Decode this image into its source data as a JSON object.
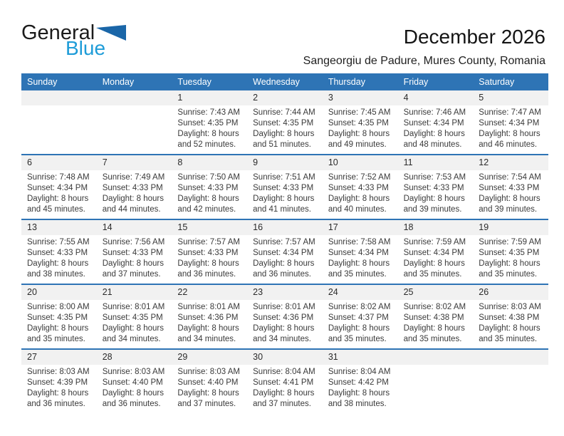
{
  "logo": {
    "word_general": "General",
    "word_blue": "Blue"
  },
  "header": {
    "title": "December 2026",
    "subtitle": "Sangeorgiu de Padure, Mures County, Romania"
  },
  "colors": {
    "accent_blue": "#2E74B5",
    "band_gray": "#F1F1F1",
    "logo_blue": "#1E9CD8",
    "logo_triangle_blue": "#1A66A8",
    "header_text": "#FFFFFF"
  },
  "calendar": {
    "weekdays": [
      "Sunday",
      "Monday",
      "Tuesday",
      "Wednesday",
      "Thursday",
      "Friday",
      "Saturday"
    ],
    "weeks": [
      [
        {
          "day": "",
          "sunrise": "",
          "sunset": "",
          "daylight": ""
        },
        {
          "day": "",
          "sunrise": "",
          "sunset": "",
          "daylight": ""
        },
        {
          "day": "1",
          "sunrise": "Sunrise: 7:43 AM",
          "sunset": "Sunset: 4:35 PM",
          "daylight": "Daylight: 8 hours and 52 minutes."
        },
        {
          "day": "2",
          "sunrise": "Sunrise: 7:44 AM",
          "sunset": "Sunset: 4:35 PM",
          "daylight": "Daylight: 8 hours and 51 minutes."
        },
        {
          "day": "3",
          "sunrise": "Sunrise: 7:45 AM",
          "sunset": "Sunset: 4:35 PM",
          "daylight": "Daylight: 8 hours and 49 minutes."
        },
        {
          "day": "4",
          "sunrise": "Sunrise: 7:46 AM",
          "sunset": "Sunset: 4:34 PM",
          "daylight": "Daylight: 8 hours and 48 minutes."
        },
        {
          "day": "5",
          "sunrise": "Sunrise: 7:47 AM",
          "sunset": "Sunset: 4:34 PM",
          "daylight": "Daylight: 8 hours and 46 minutes."
        }
      ],
      [
        {
          "day": "6",
          "sunrise": "Sunrise: 7:48 AM",
          "sunset": "Sunset: 4:34 PM",
          "daylight": "Daylight: 8 hours and 45 minutes."
        },
        {
          "day": "7",
          "sunrise": "Sunrise: 7:49 AM",
          "sunset": "Sunset: 4:33 PM",
          "daylight": "Daylight: 8 hours and 44 minutes."
        },
        {
          "day": "8",
          "sunrise": "Sunrise: 7:50 AM",
          "sunset": "Sunset: 4:33 PM",
          "daylight": "Daylight: 8 hours and 42 minutes."
        },
        {
          "day": "9",
          "sunrise": "Sunrise: 7:51 AM",
          "sunset": "Sunset: 4:33 PM",
          "daylight": "Daylight: 8 hours and 41 minutes."
        },
        {
          "day": "10",
          "sunrise": "Sunrise: 7:52 AM",
          "sunset": "Sunset: 4:33 PM",
          "daylight": "Daylight: 8 hours and 40 minutes."
        },
        {
          "day": "11",
          "sunrise": "Sunrise: 7:53 AM",
          "sunset": "Sunset: 4:33 PM",
          "daylight": "Daylight: 8 hours and 39 minutes."
        },
        {
          "day": "12",
          "sunrise": "Sunrise: 7:54 AM",
          "sunset": "Sunset: 4:33 PM",
          "daylight": "Daylight: 8 hours and 39 minutes."
        }
      ],
      [
        {
          "day": "13",
          "sunrise": "Sunrise: 7:55 AM",
          "sunset": "Sunset: 4:33 PM",
          "daylight": "Daylight: 8 hours and 38 minutes."
        },
        {
          "day": "14",
          "sunrise": "Sunrise: 7:56 AM",
          "sunset": "Sunset: 4:33 PM",
          "daylight": "Daylight: 8 hours and 37 minutes."
        },
        {
          "day": "15",
          "sunrise": "Sunrise: 7:57 AM",
          "sunset": "Sunset: 4:33 PM",
          "daylight": "Daylight: 8 hours and 36 minutes."
        },
        {
          "day": "16",
          "sunrise": "Sunrise: 7:57 AM",
          "sunset": "Sunset: 4:34 PM",
          "daylight": "Daylight: 8 hours and 36 minutes."
        },
        {
          "day": "17",
          "sunrise": "Sunrise: 7:58 AM",
          "sunset": "Sunset: 4:34 PM",
          "daylight": "Daylight: 8 hours and 35 minutes."
        },
        {
          "day": "18",
          "sunrise": "Sunrise: 7:59 AM",
          "sunset": "Sunset: 4:34 PM",
          "daylight": "Daylight: 8 hours and 35 minutes."
        },
        {
          "day": "19",
          "sunrise": "Sunrise: 7:59 AM",
          "sunset": "Sunset: 4:35 PM",
          "daylight": "Daylight: 8 hours and 35 minutes."
        }
      ],
      [
        {
          "day": "20",
          "sunrise": "Sunrise: 8:00 AM",
          "sunset": "Sunset: 4:35 PM",
          "daylight": "Daylight: 8 hours and 35 minutes."
        },
        {
          "day": "21",
          "sunrise": "Sunrise: 8:01 AM",
          "sunset": "Sunset: 4:35 PM",
          "daylight": "Daylight: 8 hours and 34 minutes."
        },
        {
          "day": "22",
          "sunrise": "Sunrise: 8:01 AM",
          "sunset": "Sunset: 4:36 PM",
          "daylight": "Daylight: 8 hours and 34 minutes."
        },
        {
          "day": "23",
          "sunrise": "Sunrise: 8:01 AM",
          "sunset": "Sunset: 4:36 PM",
          "daylight": "Daylight: 8 hours and 34 minutes."
        },
        {
          "day": "24",
          "sunrise": "Sunrise: 8:02 AM",
          "sunset": "Sunset: 4:37 PM",
          "daylight": "Daylight: 8 hours and 35 minutes."
        },
        {
          "day": "25",
          "sunrise": "Sunrise: 8:02 AM",
          "sunset": "Sunset: 4:38 PM",
          "daylight": "Daylight: 8 hours and 35 minutes."
        },
        {
          "day": "26",
          "sunrise": "Sunrise: 8:03 AM",
          "sunset": "Sunset: 4:38 PM",
          "daylight": "Daylight: 8 hours and 35 minutes."
        }
      ],
      [
        {
          "day": "27",
          "sunrise": "Sunrise: 8:03 AM",
          "sunset": "Sunset: 4:39 PM",
          "daylight": "Daylight: 8 hours and 36 minutes."
        },
        {
          "day": "28",
          "sunrise": "Sunrise: 8:03 AM",
          "sunset": "Sunset: 4:40 PM",
          "daylight": "Daylight: 8 hours and 36 minutes."
        },
        {
          "day": "29",
          "sunrise": "Sunrise: 8:03 AM",
          "sunset": "Sunset: 4:40 PM",
          "daylight": "Daylight: 8 hours and 37 minutes."
        },
        {
          "day": "30",
          "sunrise": "Sunrise: 8:04 AM",
          "sunset": "Sunset: 4:41 PM",
          "daylight": "Daylight: 8 hours and 37 minutes."
        },
        {
          "day": "31",
          "sunrise": "Sunrise: 8:04 AM",
          "sunset": "Sunset: 4:42 PM",
          "daylight": "Daylight: 8 hours and 38 minutes."
        },
        {
          "day": "",
          "sunrise": "",
          "sunset": "",
          "daylight": ""
        },
        {
          "day": "",
          "sunrise": "",
          "sunset": "",
          "daylight": ""
        }
      ]
    ]
  }
}
